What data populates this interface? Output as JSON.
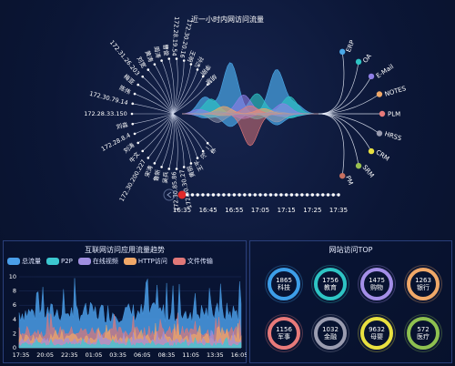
{
  "top_title": "近一小时内网访问流量",
  "left_ips": [
    "胡慧",
    "李刚",
    "孙杰",
    "王明",
    "172.30.20.16",
    "172.28.19.54",
    "曹俊",
    "周涛",
    "黄涛",
    "刘宽",
    "172.31.26.203",
    "梅亚",
    "陈伟",
    "172.30.79.14",
    "172.28.33.150",
    "刘淼",
    "172.28.8.4",
    "刘涛",
    "牛文",
    "172.30.200.227",
    "宋涛",
    "鲁新",
    "吴兵",
    "172.30.85.86",
    "172.30.30.27",
    "黄丽",
    "王平",
    "冯",
    "李二"
  ],
  "right_systems": [
    {
      "name": "ERP",
      "color": "#4aa8e8"
    },
    {
      "name": "OA",
      "color": "#2ec4c4"
    },
    {
      "name": "E-Mail",
      "color": "#8f7fe8"
    },
    {
      "name": "NOTES",
      "color": "#f0a868"
    },
    {
      "name": "PLM",
      "color": "#e87a7a"
    },
    {
      "name": "HRSS",
      "color": "#9a9cb0"
    },
    {
      "name": "CRM",
      "color": "#e8e040"
    },
    {
      "name": "SRM",
      "color": "#9ac050"
    },
    {
      "name": "PM",
      "color": "#c87060"
    }
  ],
  "timeline": {
    "labels": [
      "16:35",
      "16:45",
      "16:55",
      "17:05",
      "17:15",
      "17:25",
      "17:35"
    ],
    "current_index": 0
  },
  "bottom_left": {
    "title": "互联网访问应用流量趋势",
    "legend": [
      {
        "name": "总流量",
        "color": "#4a9ee8"
      },
      {
        "name": "P2P",
        "color": "#3cc8d0"
      },
      {
        "name": "在线视频",
        "color": "#a08fe0"
      },
      {
        "name": "HTTP访问",
        "color": "#f0a868"
      },
      {
        "name": "文件传输",
        "color": "#e07878"
      }
    ],
    "x_labels": [
      "17:35",
      "20:05",
      "22:35",
      "01:05",
      "03:35",
      "06:05",
      "08:35",
      "11:05",
      "13:35",
      "16:05"
    ],
    "y_labels": [
      "10",
      "8",
      "6",
      "4",
      "2",
      "0"
    ]
  },
  "bottom_right": {
    "title": "网站访问TOP",
    "items": [
      {
        "value": "1865",
        "name": "科技",
        "color": "#3d9ee8"
      },
      {
        "value": "1756",
        "name": "教育",
        "color": "#2ec4c4"
      },
      {
        "value": "1475",
        "name": "购物",
        "color": "#a48fe8"
      },
      {
        "value": "1263",
        "name": "银行",
        "color": "#f0a868"
      },
      {
        "value": "1156",
        "name": "军事",
        "color": "#e87a7a"
      },
      {
        "value": "1032",
        "name": "金融",
        "color": "#9a9cb0"
      },
      {
        "value": "9632",
        "name": "母婴",
        "color": "#e8e040"
      },
      {
        "value": "572",
        "name": "医疗",
        "color": "#8ec050"
      }
    ]
  }
}
